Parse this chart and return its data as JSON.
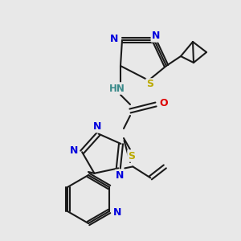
{
  "bg": "#e8e8e8",
  "C": "#1a1a1a",
  "N": "#0000dd",
  "O": "#dd0000",
  "S": "#bbaa00",
  "H": "#3a8a8a",
  "bond": "#1a1a1a",
  "lw": 1.5,
  "dbo": 0.012,
  "fs": 9
}
